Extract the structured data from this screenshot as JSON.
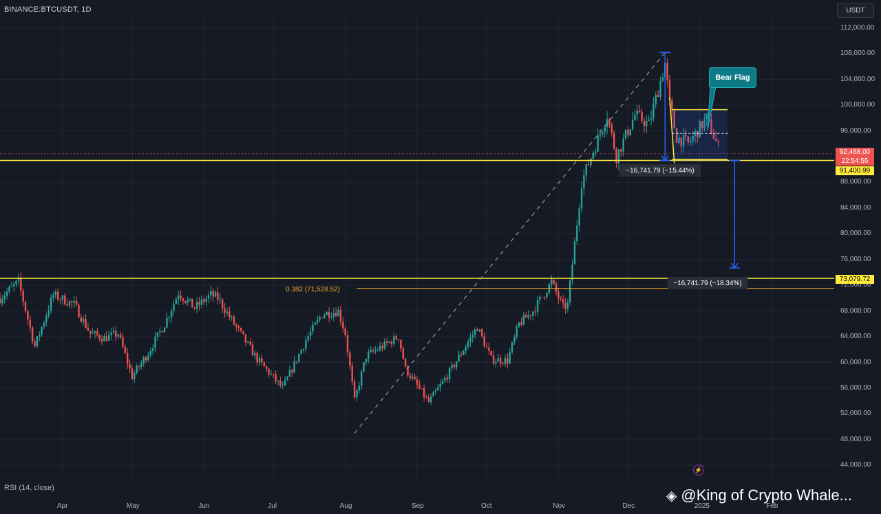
{
  "header": {
    "symbol": "BINANCE:BTCUSDT, 1D",
    "currency": "USDT"
  },
  "indicator": {
    "label": "RSI (14, close)"
  },
  "watermark": {
    "icon": "binance-diamond-icon",
    "text": "@King of Crypto Whale..."
  },
  "colors": {
    "background": "#161a25",
    "up": "#26a69a",
    "down": "#ef5350",
    "support": "#ffeb3b",
    "fib": "#f5a623",
    "measure": "#2962ff",
    "bear_flag": "#0e7a86"
  },
  "price_axis": {
    "ticks": [
      "112,000.00",
      "108,000.00",
      "104,000.00",
      "100,000.00",
      "96,000.00",
      "88,000.00",
      "84,000.00",
      "80,000.00",
      "76,000.00",
      "72,000.00",
      "68,000.00",
      "64,000.00",
      "60,000.00",
      "56,000.00",
      "52,000.00",
      "48,000.00",
      "44,000.00"
    ]
  },
  "time_axis": {
    "months": [
      "Apr",
      "May",
      "Jun",
      "Jul",
      "Aug",
      "Sep",
      "Oct",
      "Nov",
      "Dec",
      "2025",
      "Feb"
    ]
  },
  "tags": {
    "last_price": "92,468.00",
    "countdown": "22:54:55",
    "support_upper": "91,400.99",
    "support_lower": "73,079.72"
  },
  "annotations": {
    "fib_label": "0.382 (71,528.52)",
    "measure_pole": "−16,741.79 (−15.44%)",
    "measure_target": "−16,741.79 (−18.34%)",
    "pattern_label": "Bear Flag"
  },
  "chart_data": {
    "type": "candlestick",
    "ylim": [
      42000,
      114000
    ],
    "x_range": [
      "2024-03-05",
      "2025-02-28"
    ],
    "close_path": [
      [
        "2024-03-05",
        70000
      ],
      [
        "2024-03-13",
        72500
      ],
      [
        "2024-03-20",
        62500
      ],
      [
        "2024-03-28",
        70500
      ],
      [
        "2024-04-06",
        69000
      ],
      [
        "2024-04-13",
        64500
      ],
      [
        "2024-04-19",
        63800
      ],
      [
        "2024-04-25",
        64500
      ],
      [
        "2024-05-01",
        57800
      ],
      [
        "2024-05-08",
        61500
      ],
      [
        "2024-05-15",
        66000
      ],
      [
        "2024-05-21",
        70800
      ],
      [
        "2024-05-28",
        68500
      ],
      [
        "2024-06-04",
        70500
      ],
      [
        "2024-06-07",
        70000
      ],
      [
        "2024-06-14",
        66000
      ],
      [
        "2024-06-24",
        60500
      ],
      [
        "2024-07-05",
        56000
      ],
      [
        "2024-07-15",
        63500
      ],
      [
        "2024-07-22",
        67500
      ],
      [
        "2024-07-29",
        68000
      ],
      [
        "2024-08-01",
        64500
      ],
      [
        "2024-08-05",
        54000
      ],
      [
        "2024-08-10",
        61000
      ],
      [
        "2024-08-24",
        64000
      ],
      [
        "2024-08-27",
        59000
      ],
      [
        "2024-09-06",
        53800
      ],
      [
        "2024-09-15",
        58500
      ],
      [
        "2024-09-27",
        65500
      ],
      [
        "2024-10-03",
        60500
      ],
      [
        "2024-10-10",
        60300
      ],
      [
        "2024-10-15",
        66000
      ],
      [
        "2024-10-21",
        68000
      ],
      [
        "2024-10-29",
        72500
      ],
      [
        "2024-11-03",
        68500
      ],
      [
        "2024-11-05",
        69000
      ],
      [
        "2024-11-11",
        88000
      ],
      [
        "2024-11-13",
        90000
      ],
      [
        "2024-11-22",
        98500
      ],
      [
        "2024-11-26",
        92000
      ],
      [
        "2024-12-04",
        98500
      ],
      [
        "2024-12-10",
        97000
      ],
      [
        "2024-12-13",
        101000
      ],
      [
        "2024-12-17",
        106500
      ],
      [
        "2024-12-19",
        100000
      ],
      [
        "2024-12-22",
        95000
      ],
      [
        "2024-12-27",
        94000
      ],
      [
        "2025-01-04",
        98000
      ],
      [
        "2025-01-10",
        92468
      ]
    ],
    "levels": [
      {
        "label": "91,400.99",
        "value": 91400.99
      },
      {
        "label": "73,079.72",
        "value": 73079.72
      },
      {
        "label": "0.382 (71,528.52)",
        "value": 71528.52
      }
    ]
  }
}
